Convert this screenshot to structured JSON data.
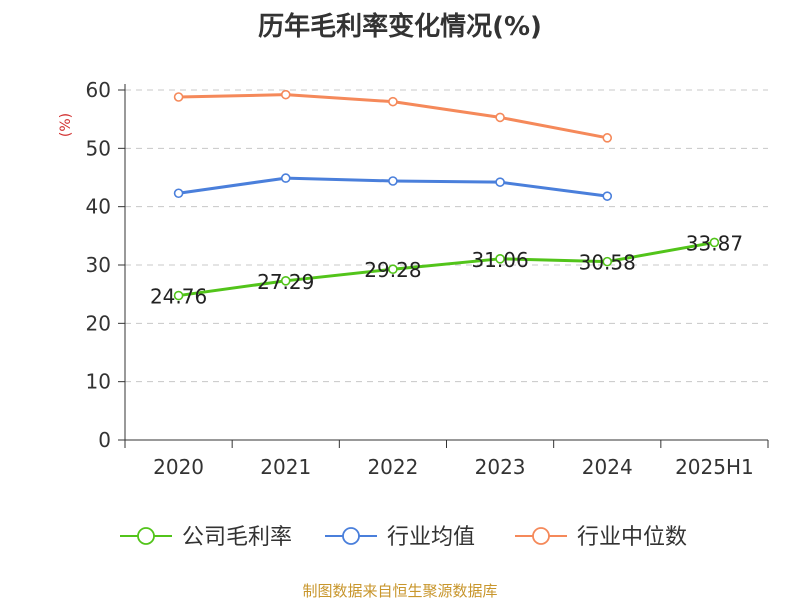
{
  "title": "历年毛利率变化情况(%)",
  "source": "制图数据来自恒生聚源数据库",
  "chart_data": {
    "type": "line",
    "title": "历年毛利率变化情况(%)",
    "ylabel": "(%)",
    "xlabel": "",
    "ylim": [
      0,
      60
    ],
    "yticks": [
      0,
      10,
      20,
      30,
      40,
      50,
      60
    ],
    "grid": true,
    "legend_position": "bottom",
    "categories": [
      "2020",
      "2021",
      "2022",
      "2023",
      "2024",
      "2025H1"
    ],
    "series": [
      {
        "name": "公司毛利率",
        "color": "#52c41a",
        "values": [
          24.76,
          27.29,
          29.28,
          31.06,
          30.58,
          33.87
        ],
        "labels": [
          "24.76",
          "27.29",
          "29.28",
          "31.06",
          "30.58",
          "33.87"
        ]
      },
      {
        "name": "行业均值",
        "color": "#4a7fdb",
        "values": [
          42.3,
          44.9,
          44.4,
          44.2,
          41.8,
          null
        ]
      },
      {
        "name": "行业中位数",
        "color": "#f5895a",
        "values": [
          58.8,
          59.2,
          58.0,
          55.3,
          51.8,
          null
        ]
      }
    ]
  }
}
